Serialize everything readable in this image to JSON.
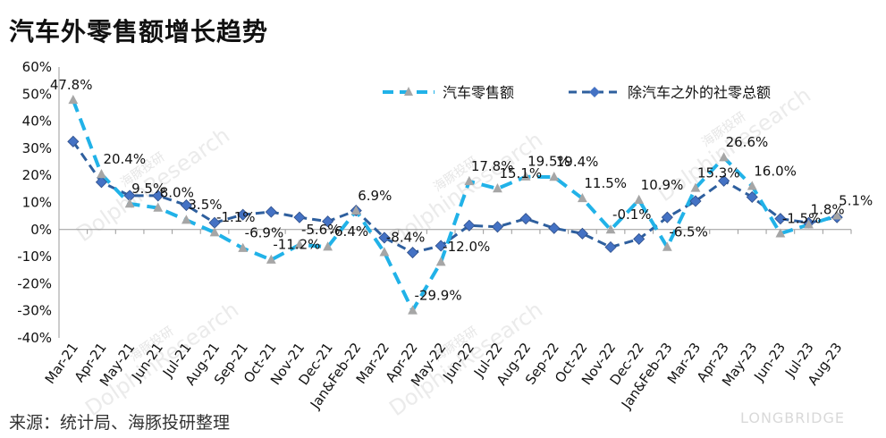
{
  "header": {
    "title": "汽车外零售额增长趋势"
  },
  "footer": {
    "source": "来源：统计局、海豚投研整理",
    "brand": "LONGBRIDGE"
  },
  "watermark": {
    "cn": "海豚投研",
    "en": "DolphinResearch"
  },
  "colors": {
    "auto": "#21b2e8",
    "non_auto": "#2e5f9e",
    "auto_marker": "#a6a6a6",
    "non_auto_marker": "#4472c4"
  },
  "chart_data": {
    "type": "line",
    "title": "汽车外零售额增长趋势",
    "categories": [
      "Mar-21",
      "Apr-21",
      "May-21",
      "Jun-21",
      "Jul-21",
      "Aug-21",
      "Sep-21",
      "Oct-21",
      "Nov-21",
      "Dec-21",
      "Jan&Feb-22",
      "Mar-22",
      "Apr-22",
      "May-22",
      "Jun-22",
      "Jul-22",
      "Aug-22",
      "Sep-22",
      "Oct-22",
      "Nov-22",
      "Dec-22",
      "Jan&Feb-23",
      "Mar-23",
      "Apr-23",
      "May-23",
      "Jun-23",
      "Jul-23",
      "Aug-23"
    ],
    "ylim": [
      -40,
      60
    ],
    "yticks": [
      -40,
      -30,
      -20,
      -10,
      0,
      10,
      20,
      30,
      40,
      50,
      60
    ],
    "ytick_labels": [
      "-40%",
      "-30%",
      "-20%",
      "-10%",
      "0%",
      "10%",
      "20%",
      "30%",
      "40%",
      "50%",
      "60%"
    ],
    "legend_position": "top-right",
    "series": [
      {
        "name": "汽车零售额",
        "values": [
          47.8,
          20.4,
          9.5,
          8.0,
          3.5,
          -1.1,
          -6.9,
          -11.2,
          -5.6,
          -6.4,
          6.9,
          -8.4,
          -29.9,
          -12.0,
          17.8,
          15.1,
          19.5,
          19.4,
          11.5,
          -0.1,
          10.9,
          -6.5,
          15.3,
          26.6,
          16.0,
          -1.5,
          1.8,
          5.1
        ],
        "labels": [
          "47.8%",
          "20.4%",
          "9.5%",
          "8.0%",
          "3.5%",
          "-1.1%",
          "-6.9%",
          "-11.2%",
          "-5.6%",
          "-6.4%",
          "6.9%",
          "-8.4%",
          "-29.9%",
          "-12.0%",
          "17.8%",
          "15.1%",
          "19.5%",
          "19.4%",
          "11.5%",
          "-0.1%",
          "10.9%",
          "-6.5%",
          "15.3%",
          "26.6%",
          "16.0%",
          "-1.5%",
          "1.8%",
          "5.1%"
        ]
      },
      {
        "name": "除汽车之外的社零总额",
        "values": [
          32.5,
          17.5,
          12.5,
          12.5,
          9.0,
          2.5,
          5.5,
          6.5,
          4.5,
          3.0,
          7.0,
          -3.0,
          -8.5,
          -6.0,
          1.5,
          1.0,
          4.0,
          0.5,
          -1.5,
          -6.5,
          -3.5,
          4.5,
          10.5,
          18.0,
          12.0,
          4.0,
          2.5,
          4.5
        ]
      }
    ],
    "grid": false
  }
}
